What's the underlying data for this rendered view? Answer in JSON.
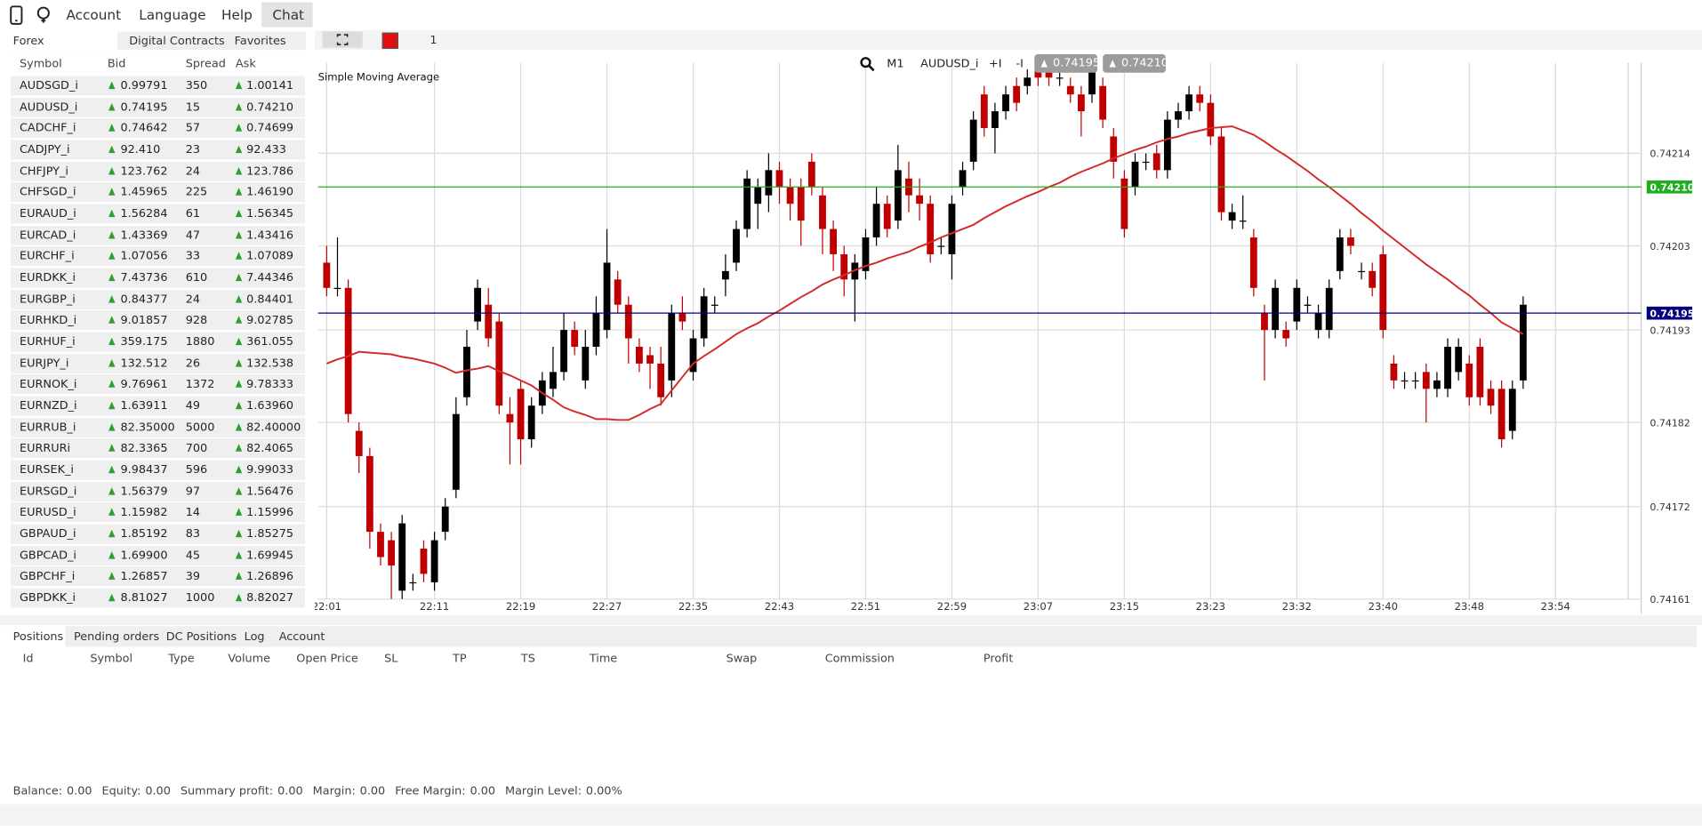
{
  "menu": {
    "items": [
      "Account",
      "Language",
      "Help",
      "Chat"
    ]
  },
  "market_tabs": [
    "Forex",
    "Digital Contracts",
    "Favorites"
  ],
  "toolbar": {
    "count": 1
  },
  "quotes": {
    "columns": [
      "Symbol",
      "Bid",
      "Spread",
      "Ask"
    ],
    "rows": [
      [
        "AUDSGD_i",
        "0.99791",
        350,
        "1.00141"
      ],
      [
        "AUDUSD_i",
        "0.74195",
        15,
        "0.74210"
      ],
      [
        "CADCHF_i",
        "0.74642",
        57,
        "0.74699"
      ],
      [
        "CADJPY_i",
        "92.410",
        23,
        "92.433"
      ],
      [
        "CHFJPY_i",
        "123.762",
        24,
        "123.786"
      ],
      [
        "CHFSGD_i",
        "1.45965",
        225,
        "1.46190"
      ],
      [
        "EURAUD_i",
        "1.56284",
        61,
        "1.56345"
      ],
      [
        "EURCAD_i",
        "1.43369",
        47,
        "1.43416"
      ],
      [
        "EURCHF_i",
        "1.07056",
        33,
        "1.07089"
      ],
      [
        "EURDKK_i",
        "7.43736",
        610,
        "7.44346"
      ],
      [
        "EURGBP_i",
        "0.84377",
        24,
        "0.84401"
      ],
      [
        "EURHKD_i",
        "9.01857",
        928,
        "9.02785"
      ],
      [
        "EURHUF_i",
        "359.175",
        1880,
        "361.055"
      ],
      [
        "EURJPY_i",
        "132.512",
        26,
        "132.538"
      ],
      [
        "EURNOK_i",
        "9.76961",
        1372,
        "9.78333"
      ],
      [
        "EURNZD_i",
        "1.63911",
        49,
        "1.63960"
      ],
      [
        "EURRUB_i",
        "82.35000",
        5000,
        "82.40000"
      ],
      [
        "EURRURi",
        "82.3365",
        700,
        "82.4065"
      ],
      [
        "EURSEK_i",
        "9.98437",
        596,
        "9.99033"
      ],
      [
        "EURSGD_i",
        "1.56379",
        97,
        "1.56476"
      ],
      [
        "EURUSD_i",
        "1.15982",
        14,
        "1.15996"
      ],
      [
        "GBPAUD_i",
        "1.85192",
        83,
        "1.85275"
      ],
      [
        "GBPCAD_i",
        "1.69900",
        45,
        "1.69945"
      ],
      [
        "GBPCHF_i",
        "1.26857",
        39,
        "1.26896"
      ],
      [
        "GBPDKK_i",
        "8.81027",
        1000,
        "8.82027"
      ]
    ]
  },
  "chart_toolbar": {
    "timeframe": "M1",
    "symbol": "AUDUSD_i",
    "buttons": [
      "+I",
      "-I"
    ]
  },
  "chart_data": {
    "type": "candlestick",
    "up_color": "#000000",
    "down_color": "#c00000",
    "grid": true,
    "categories": [
      "22:01",
      null,
      null,
      null,
      null,
      null,
      null,
      null,
      null,
      null,
      "22:11",
      null,
      null,
      null,
      null,
      null,
      null,
      null,
      "22:19",
      null,
      null,
      null,
      null,
      null,
      null,
      null,
      "22:27",
      null,
      null,
      null,
      null,
      null,
      null,
      null,
      "22:35",
      null,
      null,
      null,
      null,
      null,
      null,
      null,
      "22:43",
      null,
      null,
      null,
      null,
      null,
      null,
      null,
      "22:51",
      null,
      null,
      null,
      null,
      null,
      null,
      null,
      "22:59",
      null,
      null,
      null,
      null,
      null,
      null,
      null,
      "23:07",
      null,
      null,
      null,
      null,
      null,
      null,
      null,
      "23:15",
      null,
      null,
      null,
      null,
      null,
      null,
      null,
      "23:23",
      null,
      null,
      null,
      null,
      null,
      null,
      null,
      "23:32",
      null,
      null,
      null,
      null,
      null,
      null,
      null,
      "23:40",
      null,
      null,
      null,
      null,
      null,
      null,
      null,
      "23:48",
      null,
      null,
      null,
      null,
      null,
      null,
      null,
      "23:54"
    ],
    "open": [
      0.74201,
      0.74198,
      0.74198,
      0.74181,
      0.74178,
      0.74169,
      0.74168,
      0.74162,
      0.74163,
      0.74167,
      0.74163,
      0.74169,
      0.74174,
      0.74185,
      0.74194,
      0.74196,
      0.74194,
      0.74183,
      0.74186,
      0.7418,
      0.74184,
      0.74186,
      0.74188,
      0.74193,
      0.74187,
      0.74191,
      0.74193,
      0.74199,
      0.74196,
      0.74191,
      0.7419,
      0.74189,
      0.74187,
      0.74195,
      0.74188,
      0.74192,
      0.74196,
      0.74199,
      0.74201,
      0.74205,
      0.74208,
      0.74209,
      0.74212,
      0.7421,
      0.7421,
      0.74213,
      0.74209,
      0.74205,
      0.74202,
      0.74199,
      0.742,
      0.74204,
      0.74208,
      0.74206,
      0.74211,
      0.74209,
      0.74208,
      0.74203,
      0.74202,
      0.7421,
      0.74213,
      0.74221,
      0.74217,
      0.74219,
      0.74222,
      0.74222,
      0.74224,
      0.74224,
      0.74223,
      0.74222,
      0.74221,
      0.74221,
      0.74222,
      0.74216,
      0.74211,
      0.7421,
      0.74213,
      0.74214,
      0.74212,
      0.74218,
      0.74219,
      0.74221,
      0.7422,
      0.74216,
      0.74206,
      0.74206,
      0.74204,
      0.74195,
      0.74193,
      0.74193,
      0.74194,
      0.74196,
      0.74193,
      0.74193,
      0.742,
      0.74204,
      0.742,
      0.742,
      0.74202,
      0.74189,
      0.74187,
      0.74187,
      0.74188,
      0.74186,
      0.74186,
      0.74188,
      0.74189,
      0.74191,
      0.74186,
      0.74186,
      0.74181,
      0.74187,
      null,
      null,
      null
    ],
    "high": [
      0.74203,
      0.74204,
      0.74199,
      0.74182,
      0.74179,
      0.7417,
      0.74169,
      0.74171,
      0.74164,
      0.74168,
      0.74169,
      0.74173,
      0.74185,
      0.74193,
      0.74199,
      0.74198,
      0.74195,
      0.74185,
      0.74187,
      0.74185,
      0.74188,
      0.74191,
      0.74195,
      0.74194,
      0.74193,
      0.74197,
      0.74205,
      0.742,
      0.74197,
      0.74192,
      0.74191,
      0.74191,
      0.74196,
      0.74197,
      0.74193,
      0.74198,
      0.74197,
      0.74202,
      0.74206,
      0.74212,
      0.74211,
      0.74214,
      0.74213,
      0.74211,
      0.74211,
      0.74214,
      0.7421,
      0.74206,
      0.74203,
      0.74202,
      0.74205,
      0.7421,
      0.74209,
      0.74215,
      0.74213,
      0.74211,
      0.74209,
      0.74204,
      0.74209,
      0.74213,
      0.74219,
      0.74222,
      0.7422,
      0.74222,
      0.74223,
      0.74224,
      0.74225,
      0.74225,
      0.74224,
      0.74223,
      0.74222,
      0.74225,
      0.74223,
      0.74217,
      0.74212,
      0.74214,
      0.74214,
      0.74215,
      0.74219,
      0.7422,
      0.74222,
      0.74222,
      0.74221,
      0.74217,
      0.74208,
      0.74209,
      0.74205,
      0.74196,
      0.74199,
      0.74194,
      0.74199,
      0.74197,
      0.74196,
      0.74199,
      0.74205,
      0.74205,
      0.74201,
      0.74201,
      0.74203,
      0.7419,
      0.74188,
      0.74188,
      0.74189,
      0.74188,
      0.74192,
      0.74192,
      0.7419,
      0.74192,
      0.74187,
      0.74187,
      0.74187,
      0.74197,
      null,
      null,
      null
    ],
    "low": [
      0.74197,
      0.74197,
      0.74182,
      0.74176,
      0.74167,
      0.74165,
      0.74161,
      0.74161,
      0.74162,
      0.74163,
      0.74162,
      0.74168,
      0.74173,
      0.74184,
      0.74193,
      0.74191,
      0.74183,
      0.74177,
      0.74177,
      0.74179,
      0.74183,
      0.74185,
      0.74187,
      0.7419,
      0.74186,
      0.7419,
      0.74192,
      0.74195,
      0.74189,
      0.74188,
      0.74186,
      0.74184,
      0.74185,
      0.74193,
      0.74187,
      0.74191,
      0.74195,
      0.74197,
      0.742,
      0.74204,
      0.74205,
      0.74207,
      0.74208,
      0.74206,
      0.74203,
      0.74209,
      0.74202,
      0.742,
      0.74197,
      0.74194,
      0.74199,
      0.74203,
      0.74204,
      0.74205,
      0.74207,
      0.74206,
      0.74201,
      0.74202,
      0.74199,
      0.74209,
      0.74212,
      0.74216,
      0.74214,
      0.74218,
      0.74219,
      0.74221,
      0.74222,
      0.74222,
      0.74222,
      0.7422,
      0.74216,
      0.7422,
      0.74217,
      0.74211,
      0.74204,
      0.74209,
      0.74212,
      0.74211,
      0.74211,
      0.74217,
      0.74218,
      0.74219,
      0.74215,
      0.74206,
      0.74205,
      0.74205,
      0.74197,
      0.74187,
      0.74192,
      0.74191,
      0.74193,
      0.74195,
      0.74192,
      0.74192,
      0.74199,
      0.74202,
      0.74199,
      0.74197,
      0.74192,
      0.74186,
      0.74186,
      0.74186,
      0.74182,
      0.74185,
      0.74185,
      0.74187,
      0.74184,
      0.74184,
      0.74183,
      0.74179,
      0.7418,
      0.74186,
      null,
      null,
      null
    ],
    "close": [
      0.74198,
      0.74198,
      0.74183,
      0.74178,
      0.74169,
      0.74166,
      0.74165,
      0.7417,
      0.74163,
      0.74164,
      0.74168,
      0.74172,
      0.74183,
      0.74191,
      0.74198,
      0.74192,
      0.74184,
      0.74182,
      0.7418,
      0.74184,
      0.74187,
      0.74188,
      0.74193,
      0.74191,
      0.74191,
      0.74195,
      0.74201,
      0.74196,
      0.74192,
      0.74189,
      0.74189,
      0.74185,
      0.74195,
      0.74194,
      0.74192,
      0.74197,
      0.74196,
      0.742,
      0.74205,
      0.74211,
      0.7421,
      0.74212,
      0.7421,
      0.74208,
      0.74206,
      0.7421,
      0.74205,
      0.74202,
      0.74199,
      0.74201,
      0.74204,
      0.74208,
      0.74205,
      0.74212,
      0.74209,
      0.74208,
      0.74202,
      0.74203,
      0.74208,
      0.74212,
      0.74218,
      0.74217,
      0.74219,
      0.74221,
      0.7422,
      0.74223,
      0.74223,
      0.74223,
      0.74223,
      0.74221,
      0.74219,
      0.74224,
      0.74218,
      0.74213,
      0.74205,
      0.74213,
      0.74213,
      0.74212,
      0.74218,
      0.74219,
      0.74221,
      0.7422,
      0.74216,
      0.74207,
      0.74207,
      0.74206,
      0.74198,
      0.74193,
      0.74198,
      0.74192,
      0.74198,
      0.74196,
      0.74195,
      0.74198,
      0.74204,
      0.74203,
      0.742,
      0.74198,
      0.74193,
      0.74187,
      0.74187,
      0.74187,
      0.74186,
      0.74187,
      0.74191,
      0.74191,
      0.74185,
      0.74185,
      0.74184,
      0.7418,
      0.74186,
      0.74196,
      null,
      null,
      null
    ],
    "series": [
      {
        "name": "Simple Moving Average",
        "color": "#d42a2a",
        "values": [
          0.74189,
          0.741895,
          0.741899,
          0.741904,
          0.741903,
          0.741902,
          0.741901,
          0.741898,
          0.741896,
          0.741893,
          0.74189,
          0.741885,
          0.741879,
          0.741882,
          0.741884,
          0.741887,
          0.741881,
          0.741876,
          0.74187,
          0.741864,
          0.741855,
          0.741847,
          0.741838,
          0.741833,
          0.741829,
          0.741824,
          0.741824,
          0.741823,
          0.741823,
          0.741829,
          0.741836,
          0.741842,
          0.741858,
          0.741874,
          0.74189,
          0.741899,
          0.741907,
          0.741916,
          0.741925,
          0.741932,
          0.741938,
          0.741946,
          0.741953,
          0.741961,
          0.741969,
          0.741976,
          0.741984,
          0.74199,
          0.741995,
          0.742001,
          0.742006,
          0.74201,
          0.742015,
          0.742019,
          0.742023,
          0.742029,
          0.742034,
          0.74204,
          0.742045,
          0.74205,
          0.742055,
          0.742063,
          0.74207,
          0.742077,
          0.742083,
          0.742089,
          0.742094,
          0.7421,
          0.742105,
          0.742112,
          0.742118,
          0.742123,
          0.742128,
          0.742134,
          0.742139,
          0.742144,
          0.742148,
          0.742153,
          0.742157,
          0.74216,
          0.742164,
          0.742167,
          0.74217,
          0.742171,
          0.742172,
          0.742167,
          0.742162,
          0.742154,
          0.742145,
          0.742137,
          0.742128,
          0.742119,
          0.742109,
          0.7421,
          0.74209,
          0.74208,
          0.742069,
          0.742059,
          0.742048,
          0.742038,
          0.742028,
          0.742018,
          0.742008,
          0.741999,
          0.74199,
          0.74198,
          0.741971,
          0.74196,
          0.74195,
          0.741939,
          0.741932,
          0.741925,
          null,
          null,
          null
        ]
      }
    ],
    "ylim": [
      0.74161,
      0.74225
    ],
    "yticks": [
      0.74214,
      0.74203,
      0.74193,
      0.74182,
      0.74172,
      0.74161
    ],
    "bid_line": {
      "value": 0.74195,
      "label": "0.74195",
      "color": "#000080"
    },
    "ask_line": {
      "value": 0.7421,
      "label": "0.74210",
      "color": "#1fae1f"
    }
  },
  "bottom_tabs": [
    "Positions",
    "Pending orders",
    "DC Positions",
    "Log",
    "Account"
  ],
  "positions": {
    "columns": [
      "Id",
      "Symbol",
      "Type",
      "Volume",
      "Open Price",
      "SL",
      "TP",
      "TS",
      "Time",
      "Swap",
      "Commission",
      "Profit"
    ]
  },
  "summary": [
    {
      "label": "Balance:",
      "value": "0.00"
    },
    {
      "label": "Equity:",
      "value": "0.00"
    },
    {
      "label": "Summary profit:",
      "value": "0.00"
    },
    {
      "label": "Margin:",
      "value": "0.00"
    },
    {
      "label": "Free Margin:",
      "value": "0.00"
    },
    {
      "label": "Margin Level:",
      "value": "0.00%"
    }
  ]
}
